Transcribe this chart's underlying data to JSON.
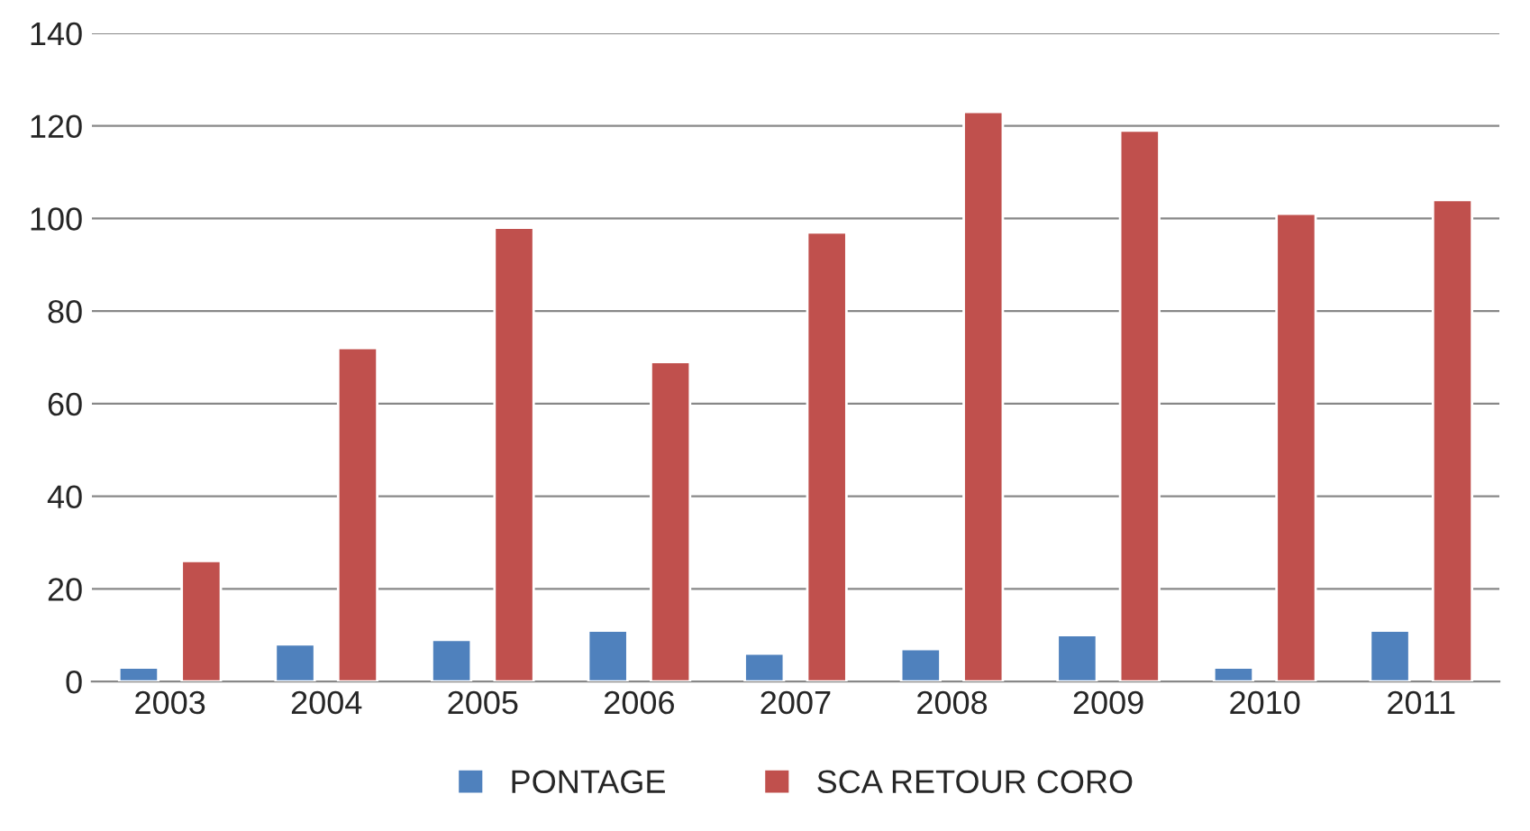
{
  "chart_data": {
    "type": "bar",
    "categories": [
      "2003",
      "2004",
      "2005",
      "2006",
      "2007",
      "2008",
      "2009",
      "2010",
      "2011"
    ],
    "series": [
      {
        "name": "PONTAGE",
        "color": "#4f81bd",
        "values": [
          3,
          8,
          9,
          11,
          6,
          7,
          10,
          3,
          11
        ]
      },
      {
        "name": "SCA RETOUR CORO",
        "color": "#c0504d",
        "values": [
          26,
          72,
          98,
          69,
          97,
          123,
          119,
          101,
          104
        ]
      }
    ],
    "ylim": [
      0,
      140
    ],
    "yticks": [
      0,
      20,
      40,
      60,
      80,
      100,
      120,
      140
    ],
    "grid": "y",
    "legend": "bottom"
  }
}
